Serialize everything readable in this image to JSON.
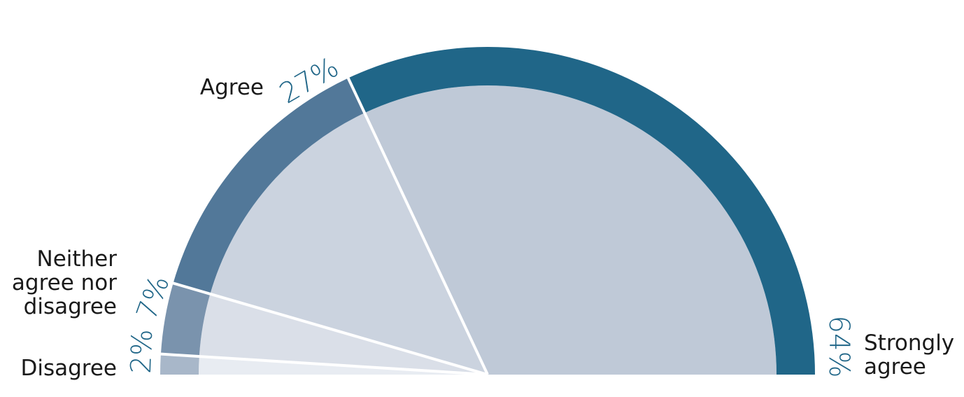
{
  "chart_data": {
    "type": "pie",
    "subtype": "semi-donut",
    "categories": [
      "Strongly agree",
      "Agree",
      "Neither agree nor disagree",
      "Disagree"
    ],
    "values": [
      64,
      27,
      7,
      2
    ],
    "value_labels": [
      "64%",
      "27%",
      "7%",
      "2%"
    ],
    "label_lines": [
      [
        "Strongly",
        "agree"
      ],
      [
        "Agree"
      ],
      [
        "Neither",
        "agree nor",
        "disagree"
      ],
      [
        "Disagree"
      ]
    ],
    "colors": {
      "ring": [
        "#206688",
        "#527899",
        "#7a93ad",
        "#a8b7c9"
      ],
      "fill": [
        "#bfc9d7",
        "#cbd3df",
        "#dadfe8",
        "#e8ecf2"
      ],
      "value_label": "#206688",
      "separator": "#ffffff"
    },
    "legend": "none",
    "grid": false
  }
}
